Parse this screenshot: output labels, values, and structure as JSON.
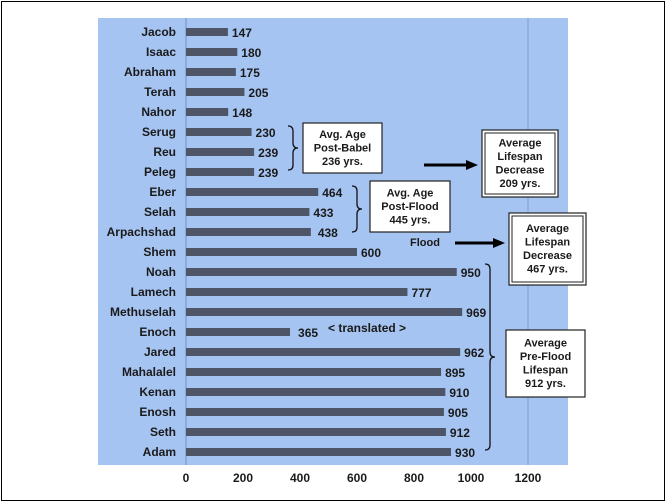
{
  "chart_data": {
    "type": "bar",
    "orientation": "horizontal",
    "categories": [
      "Jacob",
      "Isaac",
      "Abraham",
      "Terah",
      "Nahor",
      "Serug",
      "Reu",
      "Peleg",
      "Eber",
      "Selah",
      "Arpachshad",
      "Shem",
      "Noah",
      "Lamech",
      "Methuselah",
      "Enoch",
      "Jared",
      "Mahalalel",
      "Kenan",
      "Enosh",
      "Seth",
      "Adam"
    ],
    "values": [
      147,
      180,
      175,
      205,
      148,
      230,
      239,
      239,
      464,
      433,
      438,
      600,
      950,
      777,
      969,
      365,
      962,
      895,
      910,
      905,
      912,
      930
    ],
    "xlim": [
      0,
      1200
    ],
    "xticks": [
      "0",
      "200",
      "400",
      "600",
      "800",
      "1000",
      "1200"
    ],
    "grid": "vertical at 1200",
    "colors": {
      "plot_background": "#a6c4f2",
      "bar": "#4d5566",
      "text": "#1a1a1a"
    },
    "annotations": {
      "post_babel": [
        "Avg. Age",
        "Post-Babel",
        "236 yrs."
      ],
      "post_flood": [
        "Avg. Age",
        "Post-Flood",
        "445 yrs."
      ],
      "pre_flood": [
        "Average",
        "Pre-Flood",
        "Lifespan",
        "912 yrs."
      ],
      "decrease_top": [
        "Average",
        "Lifespan",
        "Decrease",
        "209 yrs."
      ],
      "decrease_mid": [
        "Average",
        "Lifespan",
        "Decrease",
        "467 yrs."
      ],
      "flood": "Flood",
      "translated": "< translated >"
    }
  }
}
